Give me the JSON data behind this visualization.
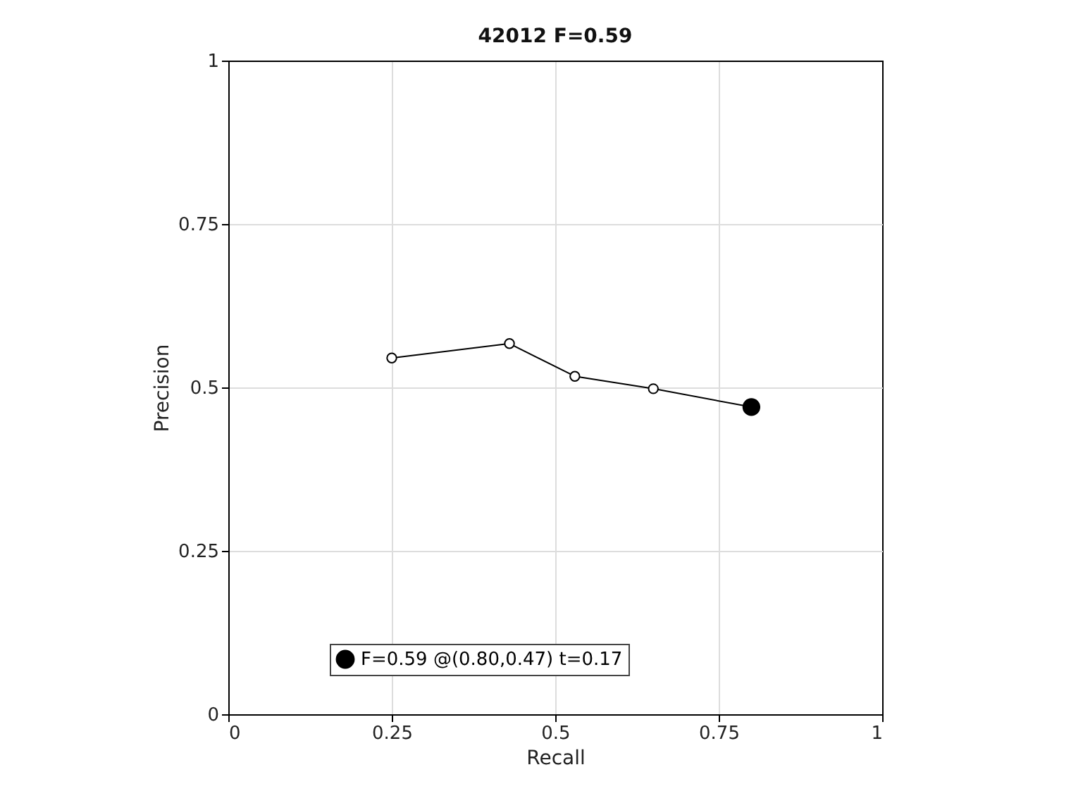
{
  "chart_data": {
    "type": "line",
    "title": "42012 F=0.59",
    "xlabel": "Recall",
    "ylabel": "Precision",
    "xlim": [
      0,
      1
    ],
    "ylim": [
      0,
      1
    ],
    "xticks": [
      0,
      0.25,
      0.5,
      0.75,
      1
    ],
    "yticks": [
      0,
      0.25,
      0.5,
      0.75,
      1
    ],
    "grid": true,
    "legend": "bottom",
    "marker": "circle",
    "line_style": "solid",
    "series": [
      {
        "color": "#000000",
        "x": [
          0.25,
          0.43,
          0.53,
          0.65,
          0.8
        ],
        "values": [
          0.545,
          0.567,
          0.517,
          0.498,
          0.47
        ]
      },
      {
        "type": "scatter",
        "name": "F=0.59 @(0.80,0.47) t=0.17",
        "color": "#000000",
        "x": [
          0.8
        ],
        "values": [
          0.47
        ]
      }
    ]
  }
}
